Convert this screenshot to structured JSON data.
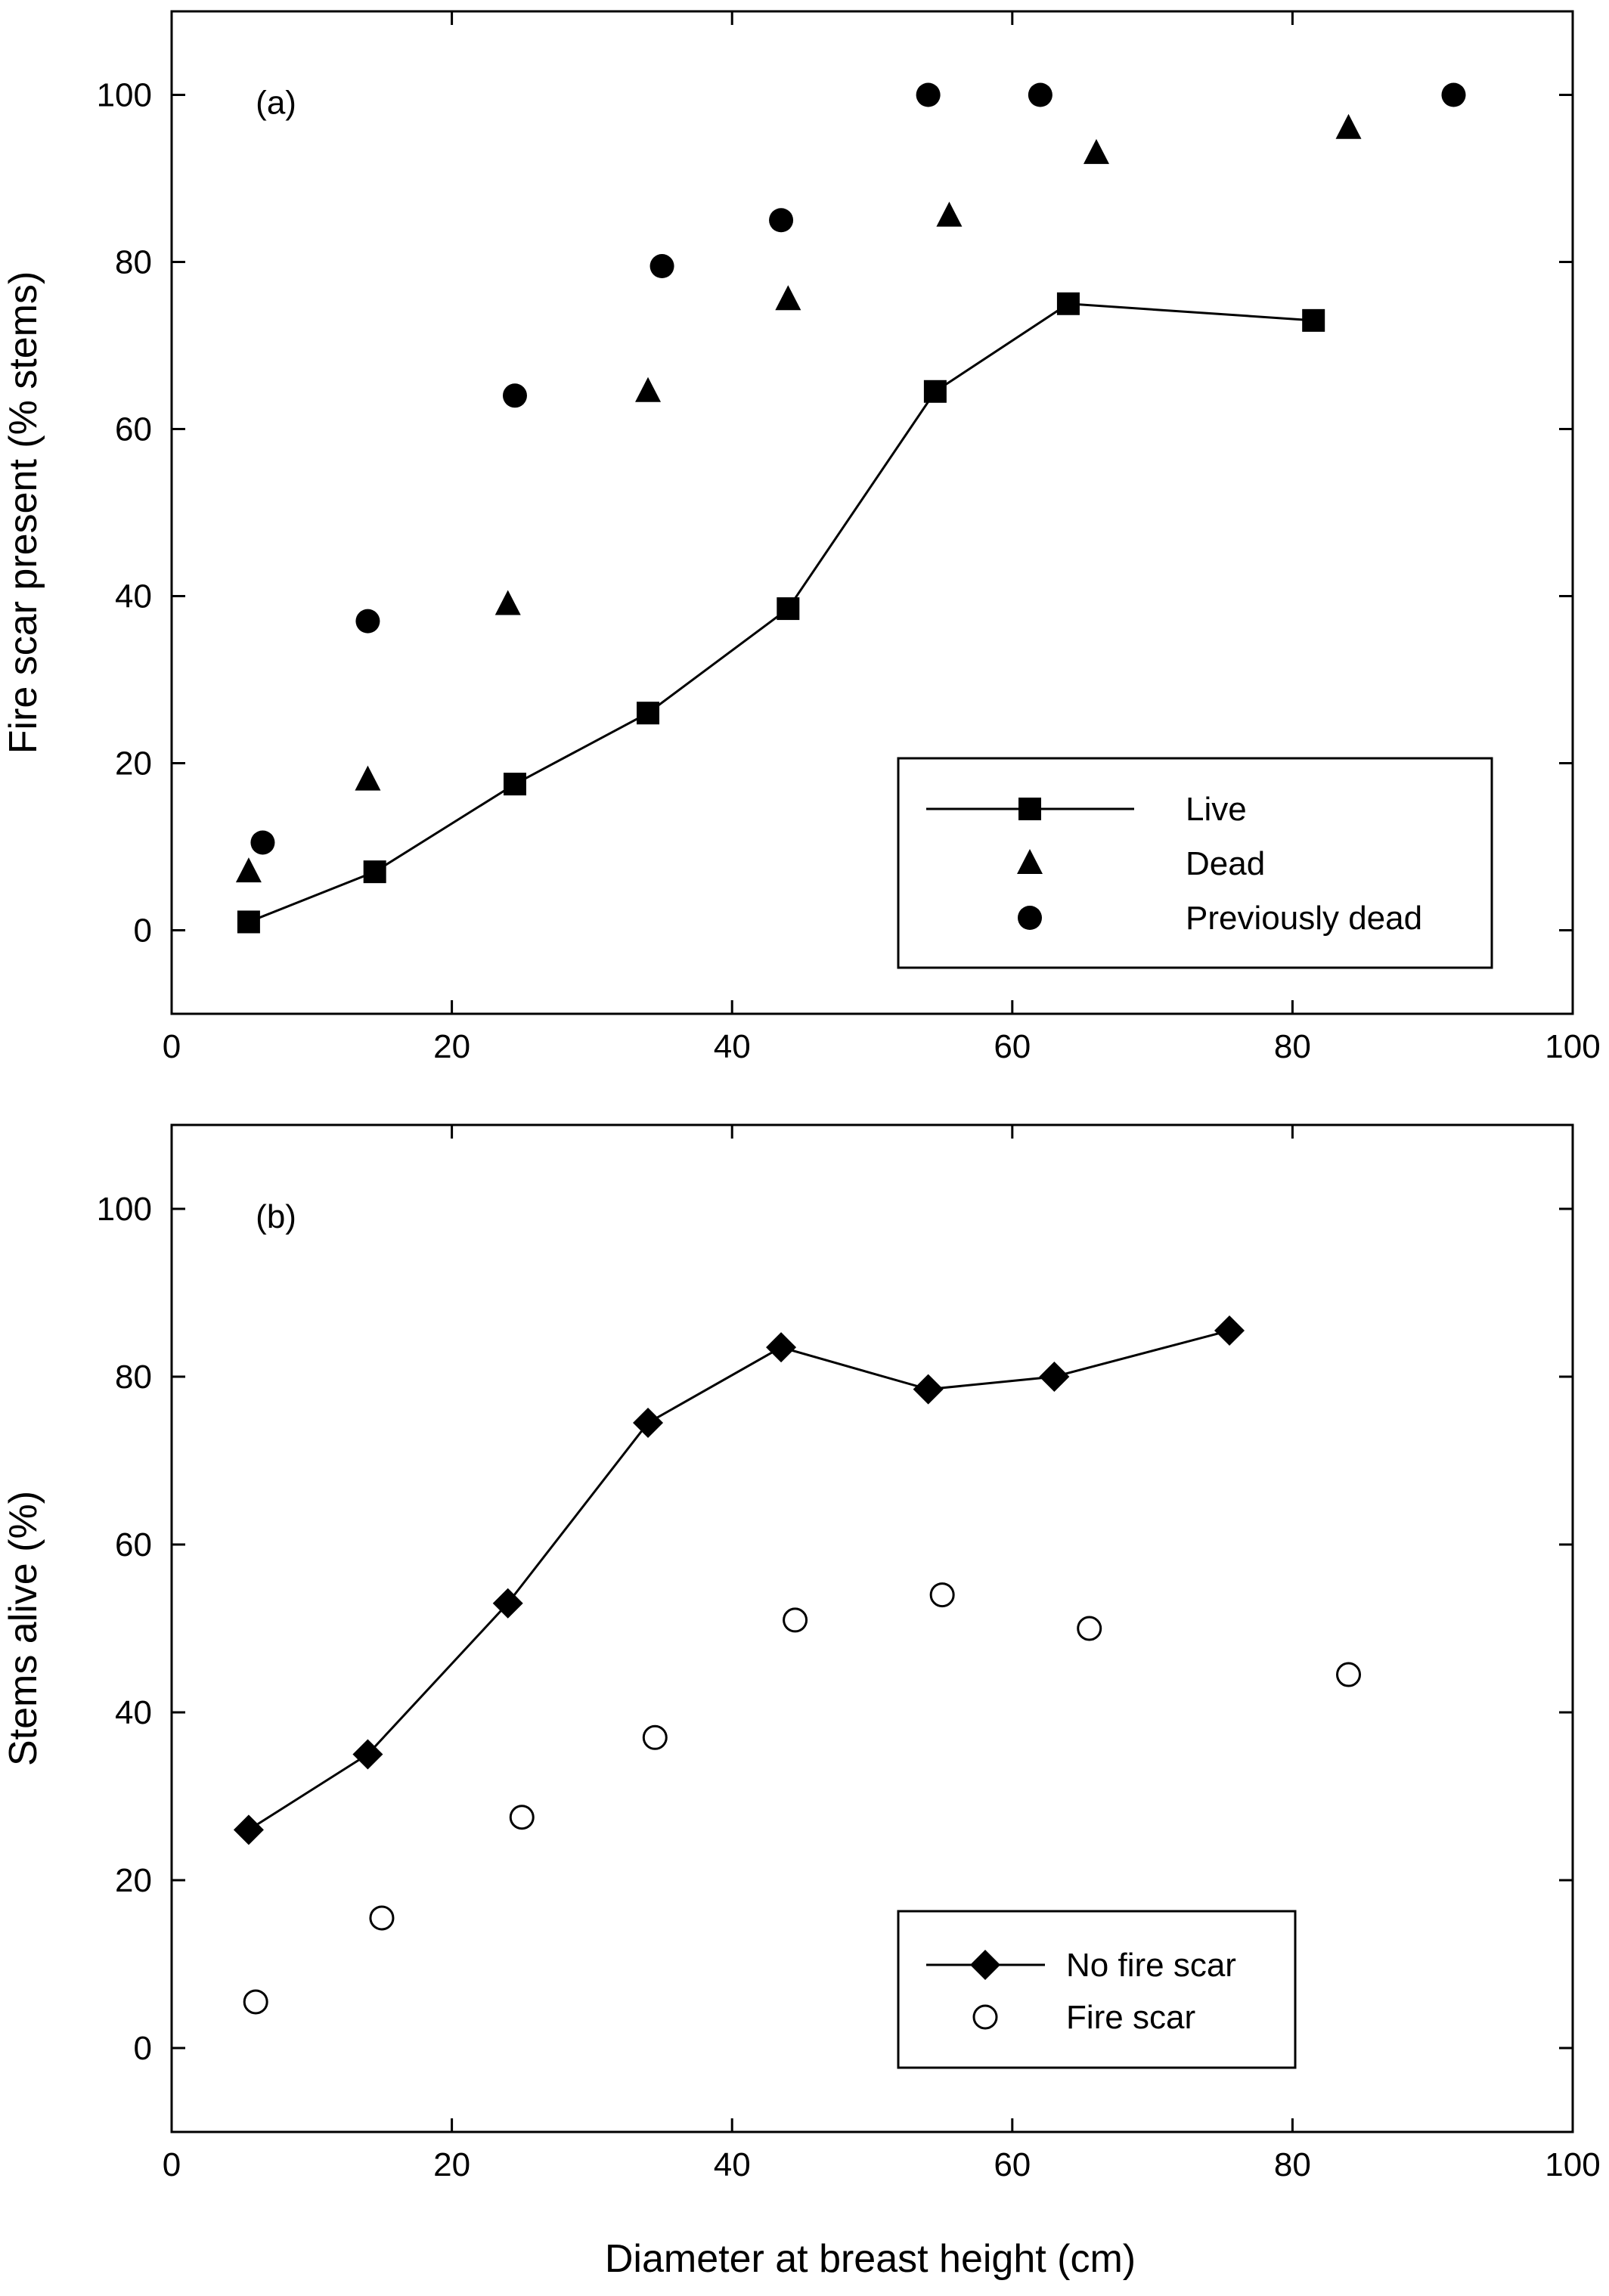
{
  "figure": {
    "xlabel": "Diameter at breast height (cm)"
  },
  "chart_data": [
    {
      "type": "line",
      "panel_label": "(a)",
      "ylabel": "Fire scar present (% stems)",
      "xlim": [
        0,
        100
      ],
      "ylim": [
        -10,
        110
      ],
      "x_ticks": [
        0,
        20,
        40,
        60,
        80,
        100
      ],
      "y_ticks": [
        0,
        20,
        40,
        60,
        80,
        100
      ],
      "x_tick_labels": [
        "0",
        "20",
        "40",
        "60",
        "80",
        "100"
      ],
      "y_tick_labels": [
        "0",
        "20",
        "40",
        "60",
        "80",
        "100"
      ],
      "grid": false,
      "legend_position": "lower-right",
      "series": [
        {
          "name": "Live",
          "marker": "square",
          "connected": true,
          "x": [
            5.5,
            14.5,
            24.5,
            34,
            44,
            54.5,
            64,
            81.5
          ],
          "y": [
            1,
            7,
            17.5,
            26,
            38.5,
            64.5,
            75,
            73
          ]
        },
        {
          "name": "Dead",
          "marker": "triangle",
          "connected": false,
          "x": [
            5.5,
            14,
            24,
            34,
            44,
            55.5,
            66,
            84
          ],
          "y": [
            7,
            18,
            39,
            64.5,
            75.5,
            85.5,
            93,
            96
          ]
        },
        {
          "name": "Previously dead",
          "marker": "circle",
          "connected": false,
          "x": [
            6.5,
            14,
            24.5,
            35,
            43.5,
            54,
            62,
            91.5
          ],
          "y": [
            10.5,
            37,
            64,
            79.5,
            85,
            100,
            100,
            100
          ]
        }
      ]
    },
    {
      "type": "line",
      "panel_label": "(b)",
      "ylabel": "Stems alive (%)",
      "xlim": [
        0,
        100
      ],
      "ylim": [
        -10,
        110
      ],
      "x_ticks": [
        0,
        20,
        40,
        60,
        80,
        100
      ],
      "y_ticks": [
        0,
        20,
        40,
        60,
        80,
        100
      ],
      "x_tick_labels": [
        "0",
        "20",
        "40",
        "60",
        "80",
        "100"
      ],
      "y_tick_labels": [
        "0",
        "20",
        "40",
        "60",
        "80",
        "100"
      ],
      "grid": false,
      "legend_position": "lower-right",
      "series": [
        {
          "name": "No fire scar",
          "marker": "diamond",
          "connected": true,
          "x": [
            5.5,
            14,
            24,
            34,
            43.5,
            54,
            63,
            75.5
          ],
          "y": [
            26,
            35,
            53,
            74.5,
            83.5,
            78.5,
            80,
            85.5
          ]
        },
        {
          "name": "Fire scar",
          "marker": "open-circle",
          "connected": false,
          "x": [
            6,
            15,
            25,
            34.5,
            44.5,
            55,
            65.5,
            84
          ],
          "y": [
            5.5,
            15.5,
            27.5,
            37,
            51,
            54,
            50,
            44.5
          ]
        }
      ]
    }
  ]
}
